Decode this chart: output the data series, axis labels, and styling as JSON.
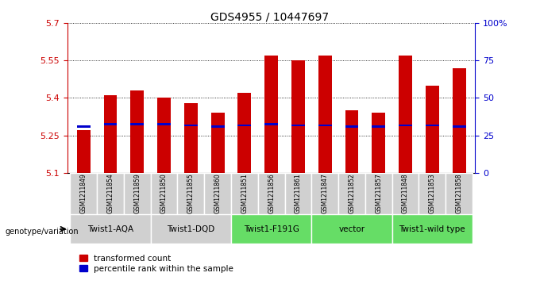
{
  "title": "GDS4955 / 10447697",
  "samples": [
    "GSM1211849",
    "GSM1211854",
    "GSM1211859",
    "GSM1211850",
    "GSM1211855",
    "GSM1211860",
    "GSM1211851",
    "GSM1211856",
    "GSM1211861",
    "GSM1211847",
    "GSM1211852",
    "GSM1211857",
    "GSM1211848",
    "GSM1211853",
    "GSM1211858"
  ],
  "transformed_count": [
    5.27,
    5.41,
    5.43,
    5.4,
    5.38,
    5.34,
    5.42,
    5.57,
    5.55,
    5.57,
    5.35,
    5.34,
    5.57,
    5.45,
    5.52
  ],
  "percentile_y": [
    5.285,
    5.295,
    5.295,
    5.295,
    5.29,
    5.285,
    5.29,
    5.295,
    5.29,
    5.29,
    5.285,
    5.285,
    5.29,
    5.29,
    5.285
  ],
  "groups": [
    {
      "label": "Twist1-AQA",
      "start": 0,
      "end": 2,
      "bg": "#d0d0d0"
    },
    {
      "label": "Twist1-DQD",
      "start": 3,
      "end": 5,
      "bg": "#d0d0d0"
    },
    {
      "label": "Twist1-F191G",
      "start": 6,
      "end": 8,
      "bg": "#66dd66"
    },
    {
      "label": "vector",
      "start": 9,
      "end": 11,
      "bg": "#66dd66"
    },
    {
      "label": "Twist1-wild type",
      "start": 12,
      "end": 14,
      "bg": "#66dd66"
    }
  ],
  "ymin": 5.1,
  "ymax": 5.7,
  "yticks": [
    5.1,
    5.25,
    5.4,
    5.55,
    5.7
  ],
  "ytick_labels": [
    "5.1",
    "5.25",
    "5.4",
    "5.55",
    "5.7"
  ],
  "right_ytick_pcts": [
    0,
    25,
    50,
    75,
    100
  ],
  "right_ytick_labels": [
    "0",
    "25",
    "50",
    "75",
    "100%"
  ],
  "bar_color": "#cc0000",
  "pct_color": "#0000cc",
  "bar_width": 0.5,
  "cell_bg": "#d0d0d0",
  "plot_bg": "#ffffff",
  "genotype_label": "genotype/variation",
  "legend1": "transformed count",
  "legend2": "percentile rank within the sample"
}
